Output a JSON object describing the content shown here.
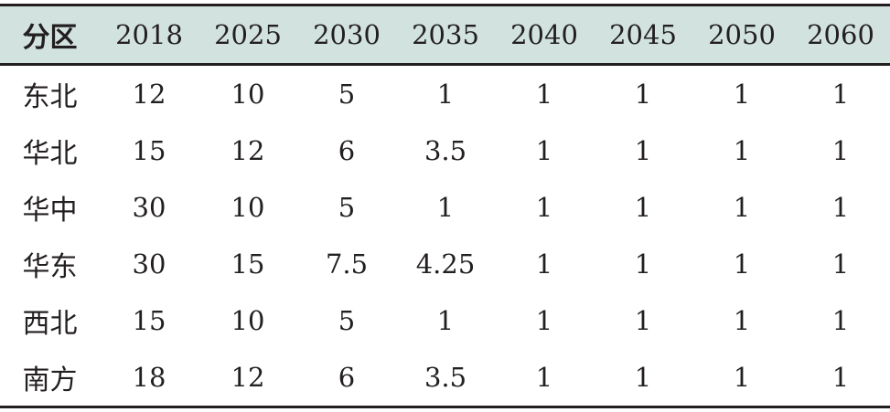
{
  "table": {
    "header": [
      "分区",
      "2018",
      "2025",
      "2030",
      "2035",
      "2040",
      "2045",
      "2050",
      "2060"
    ],
    "rows": [
      [
        "东北",
        "12",
        "10",
        "5",
        "1",
        "1",
        "1",
        "1",
        "1"
      ],
      [
        "华北",
        "15",
        "12",
        "6",
        "3.5",
        "1",
        "1",
        "1",
        "1"
      ],
      [
        "华中",
        "30",
        "10",
        "5",
        "1",
        "1",
        "1",
        "1",
        "1"
      ],
      [
        "华东",
        "30",
        "15",
        "7.5",
        "4.25",
        "1",
        "1",
        "1",
        "1"
      ],
      [
        "西北",
        "15",
        "10",
        "5",
        "1",
        "1",
        "1",
        "1",
        "1"
      ],
      [
        "南方",
        "18",
        "12",
        "6",
        "3.5",
        "1",
        "1",
        "1",
        "1"
      ]
    ]
  },
  "colors": {
    "header_background": "#d2e3df",
    "rule": "#231f20",
    "text": "#231f20"
  }
}
